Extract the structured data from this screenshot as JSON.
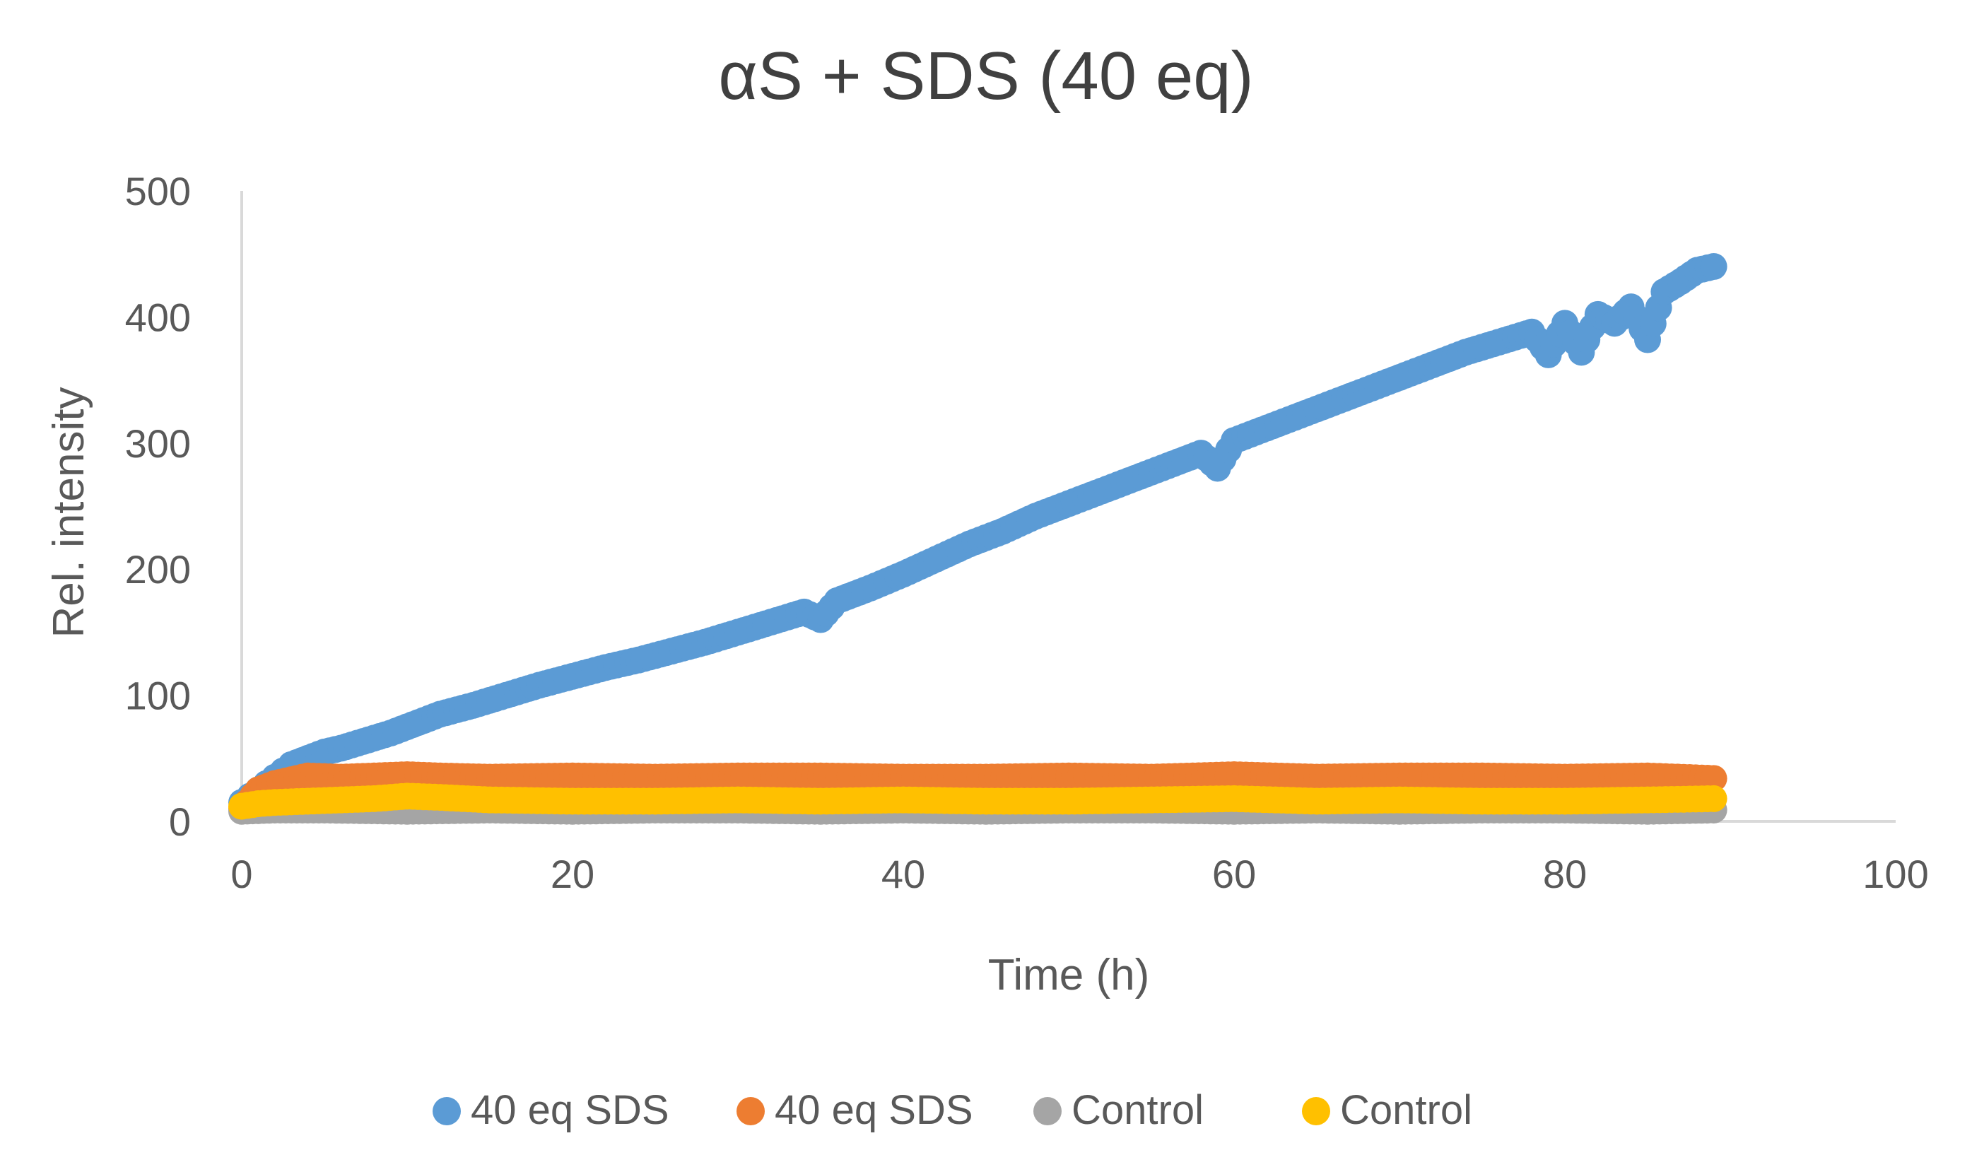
{
  "chart_data": {
    "type": "scatter",
    "title": "αS + SDS (40 eq)",
    "xlabel": "Time (h)",
    "ylabel": "Rel. intensity",
    "xlim": [
      0,
      100
    ],
    "ylim": [
      0,
      500
    ],
    "xticks": [
      0,
      20,
      40,
      60,
      80,
      100
    ],
    "yticks": [
      0,
      100,
      200,
      300,
      400,
      500
    ],
    "grid": false,
    "legend_position": "bottom",
    "series": [
      {
        "name": "40 eq SDS",
        "color": "#5B9BD5",
        "x": [
          0,
          0.5,
          1,
          1.5,
          2,
          2.5,
          3,
          4,
          5,
          6,
          7,
          8,
          9,
          10,
          11,
          12,
          14,
          16,
          18,
          20,
          22,
          24,
          26,
          28,
          30,
          32,
          34,
          35,
          36,
          38,
          40,
          42,
          44,
          46,
          48,
          50,
          52,
          54,
          56,
          58,
          59,
          60,
          62,
          64,
          66,
          68,
          70,
          72,
          74,
          76,
          78,
          79,
          80,
          81,
          82,
          83,
          84,
          85,
          86,
          87,
          88,
          89
        ],
        "y": [
          15,
          20,
          25,
          30,
          35,
          40,
          45,
          50,
          55,
          58,
          62,
          66,
          70,
          75,
          80,
          85,
          92,
          100,
          108,
          115,
          122,
          128,
          135,
          142,
          150,
          158,
          166,
          160,
          175,
          185,
          196,
          208,
          220,
          230,
          242,
          252,
          262,
          272,
          282,
          292,
          280,
          302,
          312,
          322,
          332,
          342,
          352,
          362,
          372,
          380,
          388,
          370,
          395,
          372,
          402,
          395,
          408,
          382,
          420,
          428,
          437,
          440
        ]
      },
      {
        "name": "40 eq SDS",
        "color": "#ED7D31",
        "x": [
          0,
          1,
          2,
          3,
          4,
          6,
          8,
          10,
          12,
          15,
          20,
          25,
          30,
          35,
          40,
          45,
          50,
          55,
          60,
          65,
          70,
          75,
          80,
          85,
          89
        ],
        "y": [
          10,
          25,
          30,
          33,
          36,
          35,
          36,
          37,
          36,
          35,
          36,
          35,
          36,
          36,
          35,
          35,
          36,
          35,
          37,
          35,
          36,
          36,
          35,
          36,
          34
        ]
      },
      {
        "name": "Control",
        "color": "#A5A5A5",
        "x": [
          0,
          2,
          5,
          10,
          15,
          20,
          25,
          30,
          35,
          40,
          45,
          50,
          55,
          60,
          65,
          70,
          75,
          80,
          85,
          89
        ],
        "y": [
          8,
          9,
          9,
          8,
          9,
          8,
          9,
          9,
          8,
          9,
          8,
          9,
          9,
          8,
          9,
          8,
          9,
          9,
          8,
          9
        ]
      },
      {
        "name": "Control",
        "color": "#FFC000",
        "x": [
          0,
          1,
          2,
          4,
          6,
          8,
          10,
          12,
          15,
          20,
          25,
          30,
          35,
          40,
          45,
          50,
          55,
          60,
          65,
          70,
          75,
          80,
          85,
          89
        ],
        "y": [
          12,
          14,
          15,
          16,
          17,
          18,
          20,
          19,
          17,
          16,
          16,
          17,
          16,
          17,
          16,
          16,
          17,
          18,
          16,
          17,
          16,
          16,
          17,
          18
        ]
      }
    ]
  }
}
